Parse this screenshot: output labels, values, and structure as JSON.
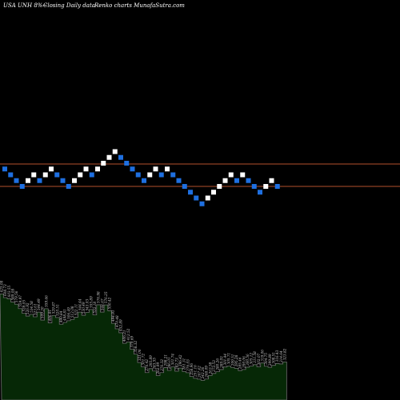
{
  "header": {
    "left": "USA UNH 8%~",
    "middle": "Closing Daily data",
    "right": "Renko  charts MunafaSutra.com"
  },
  "colors": {
    "background": "#000000",
    "up_brick": "#ffffff",
    "down_brick": "#1e6fe0",
    "reference_line": "#b5502c",
    "volume_fill": "#062806",
    "volume_edge": "#6e6e6e",
    "label_text": "#cccccc"
  },
  "chart_data": {
    "type": "renko",
    "brick_direction": [
      "down",
      "down",
      "down",
      "down",
      "up",
      "up",
      "down",
      "up",
      "up",
      "down",
      "down",
      "down",
      "up",
      "up",
      "up",
      "down",
      "up",
      "up",
      "up",
      "up",
      "down",
      "down",
      "down",
      "down",
      "down",
      "up",
      "up",
      "down",
      "up",
      "down",
      "down",
      "down",
      "down",
      "down",
      "down",
      "up",
      "up",
      "up",
      "up",
      "up",
      "down",
      "up",
      "down",
      "down",
      "down",
      "up",
      "up",
      "down"
    ],
    "reference_lines": [
      "upper",
      "lower"
    ],
    "volume_labels": [
      "625.08",
      "608.73",
      "603.55",
      "589.08",
      "579.56",
      "559.97",
      "539.05",
      "526.92",
      "534.58",
      "523.61",
      "544.49",
      "509.20",
      "559.66",
      "496.91",
      "529.87",
      "520.51",
      "490.84",
      "498.81",
      "506.49",
      "512.08",
      "522.11",
      "544.44",
      "530.49",
      "543.03",
      "555.89",
      "532.18",
      "576.98",
      "544.67",
      "576.25",
      "550.42",
      "494.91",
      "470.48",
      "452.89",
      "406.21",
      "412.52",
      "379.69",
      "358.32",
      "321.06",
      "301.72",
      "276.42",
      "293.89",
      "283.55",
      "262.99",
      "276.32",
      "298.21",
      "286.01",
      "301.74",
      "282.73",
      "296.42",
      "281.31",
      "276.03",
      "258.96",
      "251.16",
      "247.42",
      "242.26",
      "248.09",
      "263.58",
      "272.53",
      "280.26",
      "289.93",
      "301.44",
      "305.71",
      "299.51",
      "295.28",
      "285.46",
      "290.06",
      "300.56",
      "305.12",
      "311.58",
      "302.07",
      "319.06",
      "304.75",
      "299.89",
      "308.51",
      "316.43",
      "314.64",
      "323.82"
    ]
  }
}
